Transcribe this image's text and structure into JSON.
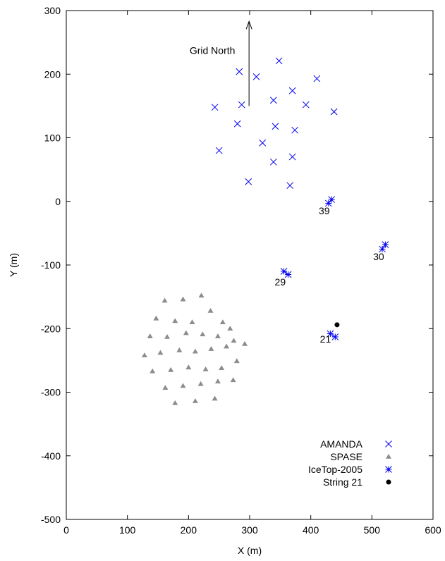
{
  "chart_data": {
    "type": "scatter",
    "xlabel": "X (m)",
    "ylabel": "Y (m)",
    "xlim": [
      0,
      600
    ],
    "ylim": [
      -500,
      300
    ],
    "xticks": [
      0,
      100,
      200,
      300,
      400,
      500,
      600
    ],
    "yticks": [
      -500,
      -400,
      -300,
      -200,
      -100,
      0,
      100,
      200,
      300
    ],
    "grid": false,
    "legend_position": "bottom-right",
    "colors": {
      "amanda": "#0000ee",
      "spase": "#8c8c8c",
      "icetop": "#0000ee",
      "string21": "#000000"
    },
    "series": [
      {
        "name": "AMANDA",
        "marker": "x",
        "points": [
          [
            283,
            204
          ],
          [
            348,
            221
          ],
          [
            311,
            196
          ],
          [
            410,
            193
          ],
          [
            243,
            148
          ],
          [
            287,
            152
          ],
          [
            370,
            174
          ],
          [
            339,
            159
          ],
          [
            392,
            152
          ],
          [
            438,
            141
          ],
          [
            280,
            122
          ],
          [
            342,
            118
          ],
          [
            374,
            112
          ],
          [
            321,
            92
          ],
          [
            250,
            80
          ],
          [
            370,
            70
          ],
          [
            339,
            62
          ],
          [
            298,
            31
          ],
          [
            366,
            25
          ]
        ]
      },
      {
        "name": "SPASE",
        "marker": "triangle",
        "points": [
          [
            221,
            -148
          ],
          [
            161,
            -156
          ],
          [
            191,
            -154
          ],
          [
            236,
            -172
          ],
          [
            147,
            -184
          ],
          [
            178,
            -188
          ],
          [
            206,
            -190
          ],
          [
            256,
            -190
          ],
          [
            268,
            -200
          ],
          [
            137,
            -212
          ],
          [
            165,
            -213
          ],
          [
            196,
            -207
          ],
          [
            223,
            -209
          ],
          [
            248,
            -212
          ],
          [
            274,
            -219
          ],
          [
            128,
            -242
          ],
          [
            154,
            -238
          ],
          [
            185,
            -234
          ],
          [
            211,
            -236
          ],
          [
            237,
            -232
          ],
          [
            262,
            -228
          ],
          [
            292,
            -224
          ],
          [
            141,
            -267
          ],
          [
            171,
            -265
          ],
          [
            200,
            -261
          ],
          [
            228,
            -264
          ],
          [
            254,
            -262
          ],
          [
            279,
            -251
          ],
          [
            162,
            -293
          ],
          [
            191,
            -290
          ],
          [
            220,
            -287
          ],
          [
            248,
            -283
          ],
          [
            273,
            -281
          ],
          [
            178,
            -317
          ],
          [
            211,
            -314
          ],
          [
            243,
            -310
          ]
        ]
      },
      {
        "name": "IceTop-2005",
        "marker": "star",
        "points": [
          [
            434,
            3
          ],
          [
            429,
            -3
          ],
          [
            522,
            -68
          ],
          [
            517,
            -75
          ],
          [
            356,
            -110
          ],
          [
            363,
            -115
          ],
          [
            432,
            -208
          ],
          [
            440,
            -213
          ]
        ]
      },
      {
        "name": "String 21",
        "marker": "circle",
        "points": [
          [
            443,
            -194
          ]
        ]
      }
    ],
    "annotations": {
      "arrow_label": "Grid North",
      "arrow": {
        "x": 299,
        "y_from": 150,
        "y_to": 283
      },
      "station_labels": [
        {
          "text": "39",
          "x": 422,
          "y": -20
        },
        {
          "text": "30",
          "x": 511,
          "y": -92
        },
        {
          "text": "29",
          "x": 350,
          "y": -132
        },
        {
          "text": "21",
          "x": 424,
          "y": -222
        }
      ]
    }
  }
}
